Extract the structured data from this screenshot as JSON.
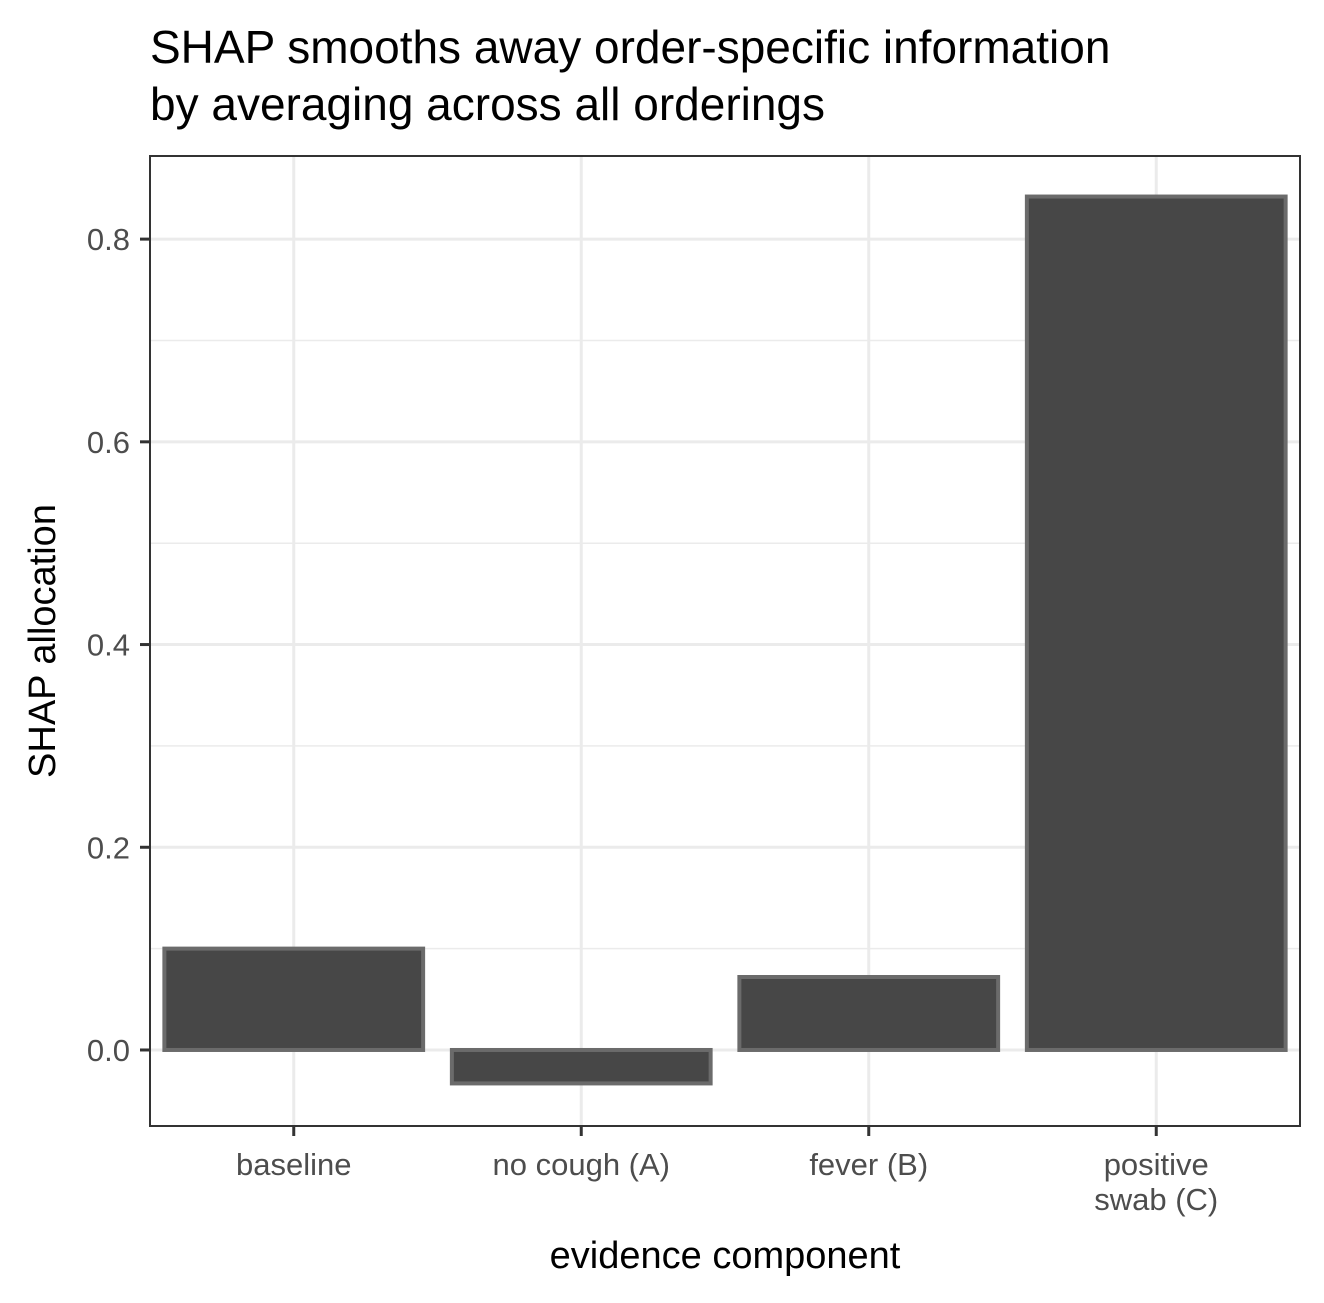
{
  "chart_data": {
    "type": "bar",
    "title_lines": [
      "SHAP smooths away order-specific information",
      "by averaging across all orderings"
    ],
    "xlabel": "evidence component",
    "ylabel": "SHAP allocation",
    "categories": [
      "baseline",
      "no cough (A)",
      "fever (B)",
      "positive swab (C)"
    ],
    "category_label_lines": [
      [
        "baseline"
      ],
      [
        "no cough (A)"
      ],
      [
        "fever (B)"
      ],
      [
        "positive",
        "swab (C)"
      ]
    ],
    "values": [
      0.1,
      -0.033,
      0.072,
      0.842
    ],
    "ylim": [
      -0.075,
      0.882
    ],
    "yticks": [
      0.0,
      0.2,
      0.4,
      0.6,
      0.8
    ],
    "ytick_labels": [
      "0.0",
      "0.2",
      "0.4",
      "0.6",
      "0.8"
    ],
    "grid": true,
    "legend": "none",
    "colors": {
      "bar_fill": "#474747",
      "bar_stroke": "#6b6b6b",
      "grid": "#ebebeb",
      "panel_border": "#333333"
    }
  }
}
